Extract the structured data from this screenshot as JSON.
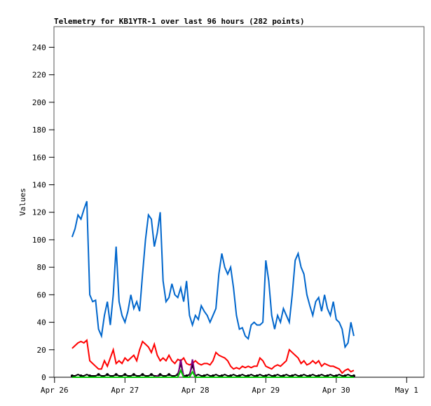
{
  "chart_data": {
    "type": "line",
    "title": "Telemetry for KB1YTR-1 over last 96 hours (282 points)",
    "xlabel": "",
    "ylabel": "Values",
    "ylim": [
      0,
      255
    ],
    "xlim_hours_from_apr26_0000": [
      0,
      130
    ],
    "y_ticks": [
      "0",
      "20",
      "40",
      "60",
      "80",
      "100",
      "120",
      "140",
      "160",
      "180",
      "200",
      "220",
      "240"
    ],
    "x_ticks": [
      {
        "label": "Apr 26",
        "hour": 0
      },
      {
        "label": "Apr 27",
        "hour": 24
      },
      {
        "label": "Apr 28",
        "hour": 48
      },
      {
        "label": "Apr 29",
        "hour": 72
      },
      {
        "label": "Apr 30",
        "hour": 96
      },
      {
        "label": "May 1",
        "hour": 120
      }
    ],
    "x_start_hour": 6,
    "x_step_hours": 1,
    "grid": false,
    "legend": "none",
    "series": [
      {
        "name": "blue",
        "color": "#0066cc",
        "values": [
          102,
          108,
          118,
          115,
          122,
          128,
          60,
          55,
          56,
          35,
          30,
          45,
          55,
          38,
          60,
          95,
          55,
          45,
          40,
          48,
          60,
          50,
          55,
          48,
          75,
          100,
          118,
          115,
          95,
          105,
          120,
          70,
          55,
          58,
          68,
          60,
          58,
          65,
          55,
          70,
          45,
          38,
          45,
          42,
          52,
          48,
          45,
          40,
          45,
          50,
          75,
          90,
          80,
          75,
          80,
          65,
          45,
          35,
          36,
          30,
          28,
          38,
          40,
          38,
          38,
          40,
          85,
          70,
          45,
          35,
          45,
          40,
          50,
          45,
          40,
          60,
          85,
          90,
          80,
          75,
          60,
          52,
          45,
          55,
          58,
          48,
          60,
          50,
          45,
          55,
          42,
          40,
          35,
          22,
          25,
          40,
          30
        ]
      },
      {
        "name": "red",
        "color": "#ff0000",
        "values": [
          21,
          23,
          25,
          26,
          25,
          27,
          12,
          10,
          8,
          6,
          6,
          12,
          8,
          14,
          20,
          10,
          12,
          10,
          14,
          12,
          14,
          16,
          12,
          20,
          26,
          24,
          22,
          18,
          24,
          16,
          12,
          14,
          12,
          16,
          12,
          10,
          13,
          12,
          14,
          10,
          9,
          10,
          12,
          10,
          9,
          10,
          10,
          9,
          12,
          18,
          16,
          15,
          14,
          12,
          8,
          6,
          7,
          6,
          8,
          7,
          8,
          7,
          8,
          8,
          14,
          12,
          8,
          7,
          6,
          8,
          9,
          8,
          10,
          12,
          20,
          18,
          16,
          14,
          10,
          12,
          9,
          10,
          12,
          10,
          12,
          8,
          10,
          9,
          8,
          8,
          7,
          6,
          3,
          5,
          6,
          4,
          5
        ]
      },
      {
        "name": "black",
        "color": "#000000",
        "values": [
          1,
          1,
          2,
          1,
          1,
          2,
          1,
          1,
          1,
          2,
          1,
          1,
          2,
          1,
          1,
          2,
          1,
          1,
          2,
          1,
          1,
          2,
          1,
          1,
          2,
          1,
          1,
          2,
          1,
          1,
          2,
          1,
          1,
          2,
          1,
          1,
          2,
          10,
          1,
          1,
          2,
          9,
          1,
          2,
          1,
          1,
          2,
          1,
          1,
          2,
          1,
          1,
          2,
          1,
          1,
          2,
          1,
          1,
          2,
          1,
          1,
          2,
          1,
          1,
          2,
          1,
          1,
          2,
          1,
          1,
          2,
          1,
          1,
          2,
          1,
          1,
          2,
          1,
          1,
          2,
          1,
          1,
          2,
          1,
          1,
          2,
          1,
          1,
          2,
          1,
          1,
          2,
          1,
          1,
          2,
          1,
          1
        ]
      },
      {
        "name": "purple",
        "color": "#800080",
        "values": [
          0,
          0,
          0,
          0,
          0,
          0,
          0,
          0,
          0,
          0,
          0,
          0,
          0,
          0,
          0,
          0,
          0,
          0,
          0,
          0,
          0,
          0,
          0,
          0,
          0,
          0,
          0,
          0,
          0,
          1,
          0,
          0,
          0,
          0,
          0,
          0,
          0,
          13,
          0,
          0,
          0,
          13,
          0,
          0,
          0,
          0,
          0,
          0,
          0,
          0,
          0,
          0,
          0,
          0,
          0,
          0,
          0,
          0,
          0,
          0,
          0,
          0,
          0,
          0,
          0,
          0,
          0,
          0,
          0,
          0,
          0,
          0,
          0,
          0,
          0,
          0,
          0,
          0,
          0,
          0,
          0,
          0,
          0,
          0,
          0,
          0,
          0,
          0,
          0,
          0,
          0,
          0,
          0,
          0,
          0,
          0,
          0
        ]
      },
      {
        "name": "green",
        "color": "#00cc00",
        "values": [
          0,
          0,
          0,
          0,
          0,
          0,
          0,
          0,
          0,
          0,
          0,
          0,
          0,
          0,
          0,
          0,
          0,
          0,
          0,
          0,
          0,
          0,
          0,
          0,
          0,
          0,
          0,
          0,
          0,
          0,
          0,
          0,
          0,
          0,
          0,
          0,
          0,
          5,
          0,
          0,
          0,
          4,
          0,
          0,
          0,
          0,
          0,
          0,
          0,
          0,
          0,
          0,
          0,
          0,
          0,
          0,
          0,
          0,
          0,
          0,
          0,
          0,
          0,
          0,
          0,
          0,
          0,
          0,
          0,
          0,
          0,
          0,
          0,
          0,
          0,
          0,
          0,
          0,
          0,
          0,
          0,
          0,
          0,
          0,
          0,
          0,
          0,
          0,
          0,
          0,
          0,
          0,
          0,
          0,
          0,
          0,
          0
        ]
      }
    ]
  }
}
